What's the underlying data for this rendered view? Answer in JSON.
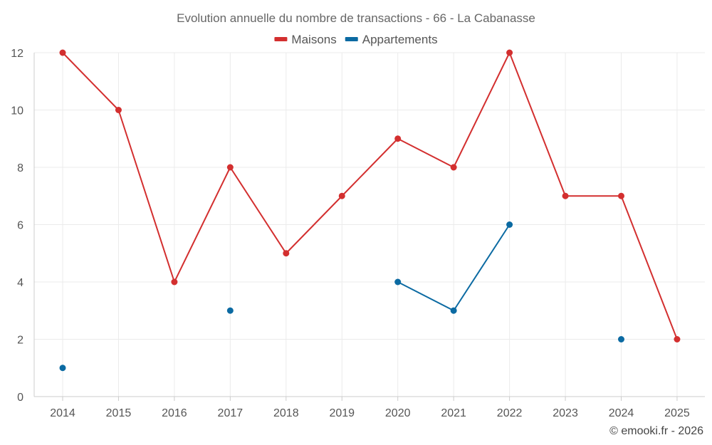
{
  "chart_data": {
    "type": "line",
    "title": "Evolution annuelle du nombre de transactions - 66 - La Cabanasse",
    "categories": [
      "2014",
      "2015",
      "2016",
      "2017",
      "2018",
      "2019",
      "2020",
      "2021",
      "2022",
      "2023",
      "2024",
      "2025"
    ],
    "series": [
      {
        "name": "Maisons",
        "color": "#d32f2f",
        "values": [
          12,
          10,
          4,
          8,
          5,
          7,
          9,
          8,
          12,
          7,
          7,
          2
        ]
      },
      {
        "name": "Appartements",
        "color": "#0b6aa2",
        "values": [
          1,
          null,
          null,
          3,
          null,
          null,
          4,
          3,
          6,
          null,
          2,
          null
        ]
      }
    ],
    "ylim": [
      0,
      12
    ],
    "yticks": [
      0,
      2,
      4,
      6,
      8,
      10,
      12
    ],
    "grid": true,
    "legend_position": "top-center",
    "xlabel": "",
    "ylabel": ""
  },
  "credit": "© emooki.fr - 2026"
}
